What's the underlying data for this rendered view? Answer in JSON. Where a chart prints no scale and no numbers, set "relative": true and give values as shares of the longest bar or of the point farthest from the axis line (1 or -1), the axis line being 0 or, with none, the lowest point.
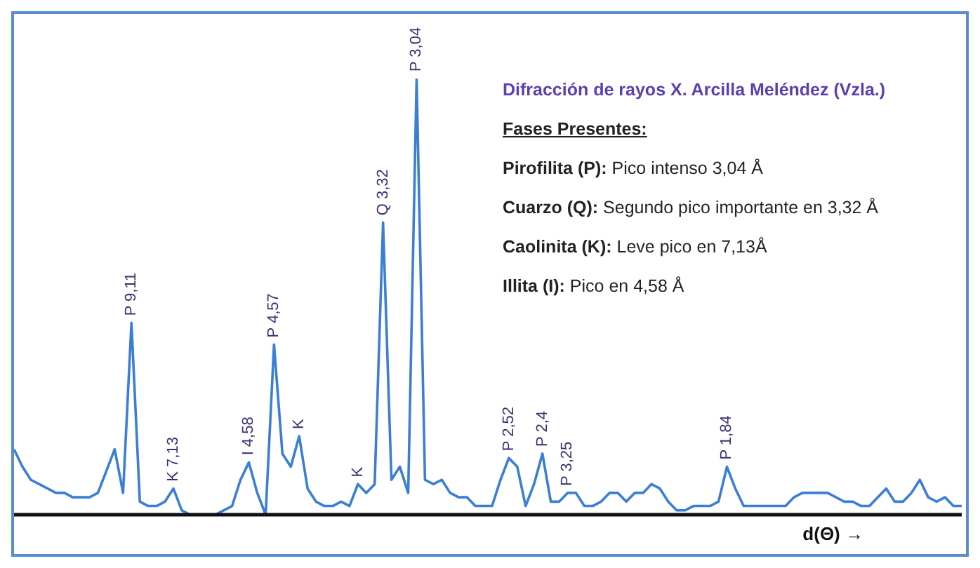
{
  "chart_data": {
    "type": "line",
    "relative": true,
    "title": "Difracción de rayos X. Arcilla Meléndez (Vzla.)",
    "xlabel": "d(Θ) →",
    "color": "#3a7fd5",
    "categories": [
      null,
      null,
      null,
      null,
      null,
      null,
      null,
      null,
      null,
      null,
      null,
      null,
      null,
      null,
      null,
      null,
      null,
      null,
      null,
      null,
      null,
      null,
      null,
      null,
      null,
      null,
      null,
      null,
      null,
      null,
      null,
      null,
      null,
      null,
      null,
      null,
      null,
      null,
      null,
      null,
      null,
      null,
      null,
      null,
      null,
      null,
      null,
      null,
      null,
      null,
      null,
      null,
      null,
      null,
      null,
      null,
      null,
      null,
      null,
      null,
      null,
      null,
      null,
      null,
      null,
      null,
      null,
      null,
      null,
      null,
      null,
      null,
      null,
      null,
      null,
      null,
      null,
      null,
      null,
      null,
      null,
      null,
      null,
      null,
      null,
      null,
      null,
      null,
      null,
      null,
      null,
      null,
      null,
      null,
      null,
      null,
      null,
      null,
      null,
      null,
      null,
      null,
      null,
      null,
      null,
      null,
      null,
      null,
      null,
      null,
      null,
      null,
      null,
      null
    ],
    "values": [
      0.15,
      0.11,
      0.08,
      0.07,
      0.06,
      0.05,
      0.05,
      0.04,
      0.04,
      0.04,
      0.05,
      0.1,
      0.15,
      0.05,
      0.44,
      0.03,
      0.02,
      0.02,
      0.03,
      0.06,
      0.01,
      0,
      0,
      0,
      0,
      0.01,
      0.02,
      0.08,
      0.12,
      0.05,
      0,
      0.39,
      0.14,
      0.11,
      0.18,
      0.06,
      0.03,
      0.02,
      0.02,
      0.03,
      0.02,
      0.07,
      0.05,
      0.07,
      0.67,
      0.08,
      0.11,
      0.05,
      1,
      0.08,
      0.07,
      0.08,
      0.05,
      0.04,
      0.04,
      0.02,
      0.02,
      0.02,
      0.08,
      0.13,
      0.11,
      0.02,
      0.07,
      0.14,
      0.03,
      0.03,
      0.05,
      0.05,
      0.02,
      0.02,
      0.03,
      0.05,
      0.05,
      0.03,
      0.05,
      0.05,
      0.07,
      0.06,
      0.03,
      0.01,
      0.01,
      0.02,
      0.02,
      0.02,
      0.03,
      0.11,
      0.06,
      0.02,
      0.02,
      0.02,
      0.02,
      0.02,
      0.02,
      0.04,
      0.05,
      0.05,
      0.05,
      0.05,
      0.04,
      0.03,
      0.03,
      0.02,
      0.02,
      0.04,
      0.06,
      0.03,
      0.03,
      0.05,
      0.08,
      0.04,
      0.03,
      0.04,
      0.02,
      0.02
    ],
    "annotations": [
      "Fases Presentes:",
      "Pirofilita (P): Pico intenso 3,04 Å",
      "Cuarzo (Q): Segundo pico importante en  3,32 Å",
      "Caolinita (K): Leve pico en 7,13Å",
      "Illita (I): Pico en 4,58 Å",
      {
        "text": "P 9,11",
        "y": 0.44
      },
      {
        "text": "K 7,13",
        "y": 0.06
      },
      {
        "text": "I 4,58",
        "y": 0.12
      },
      {
        "text": "P 4,57",
        "y": 0.39
      },
      {
        "text": "K",
        "y": 0.18
      },
      {
        "text": "K",
        "y": 0.07
      },
      {
        "text": "Q 3,32",
        "y": 0.67
      },
      {
        "text": "P 3,04",
        "y": 1
      },
      {
        "text": "P 2,52",
        "y": 0.13
      },
      {
        "text": "P 2,4",
        "y": 0.14
      },
      {
        "text": "P 3,25",
        "y": 0.05
      },
      {
        "text": "P 1,84",
        "y": 0.11
      }
    ]
  }
}
